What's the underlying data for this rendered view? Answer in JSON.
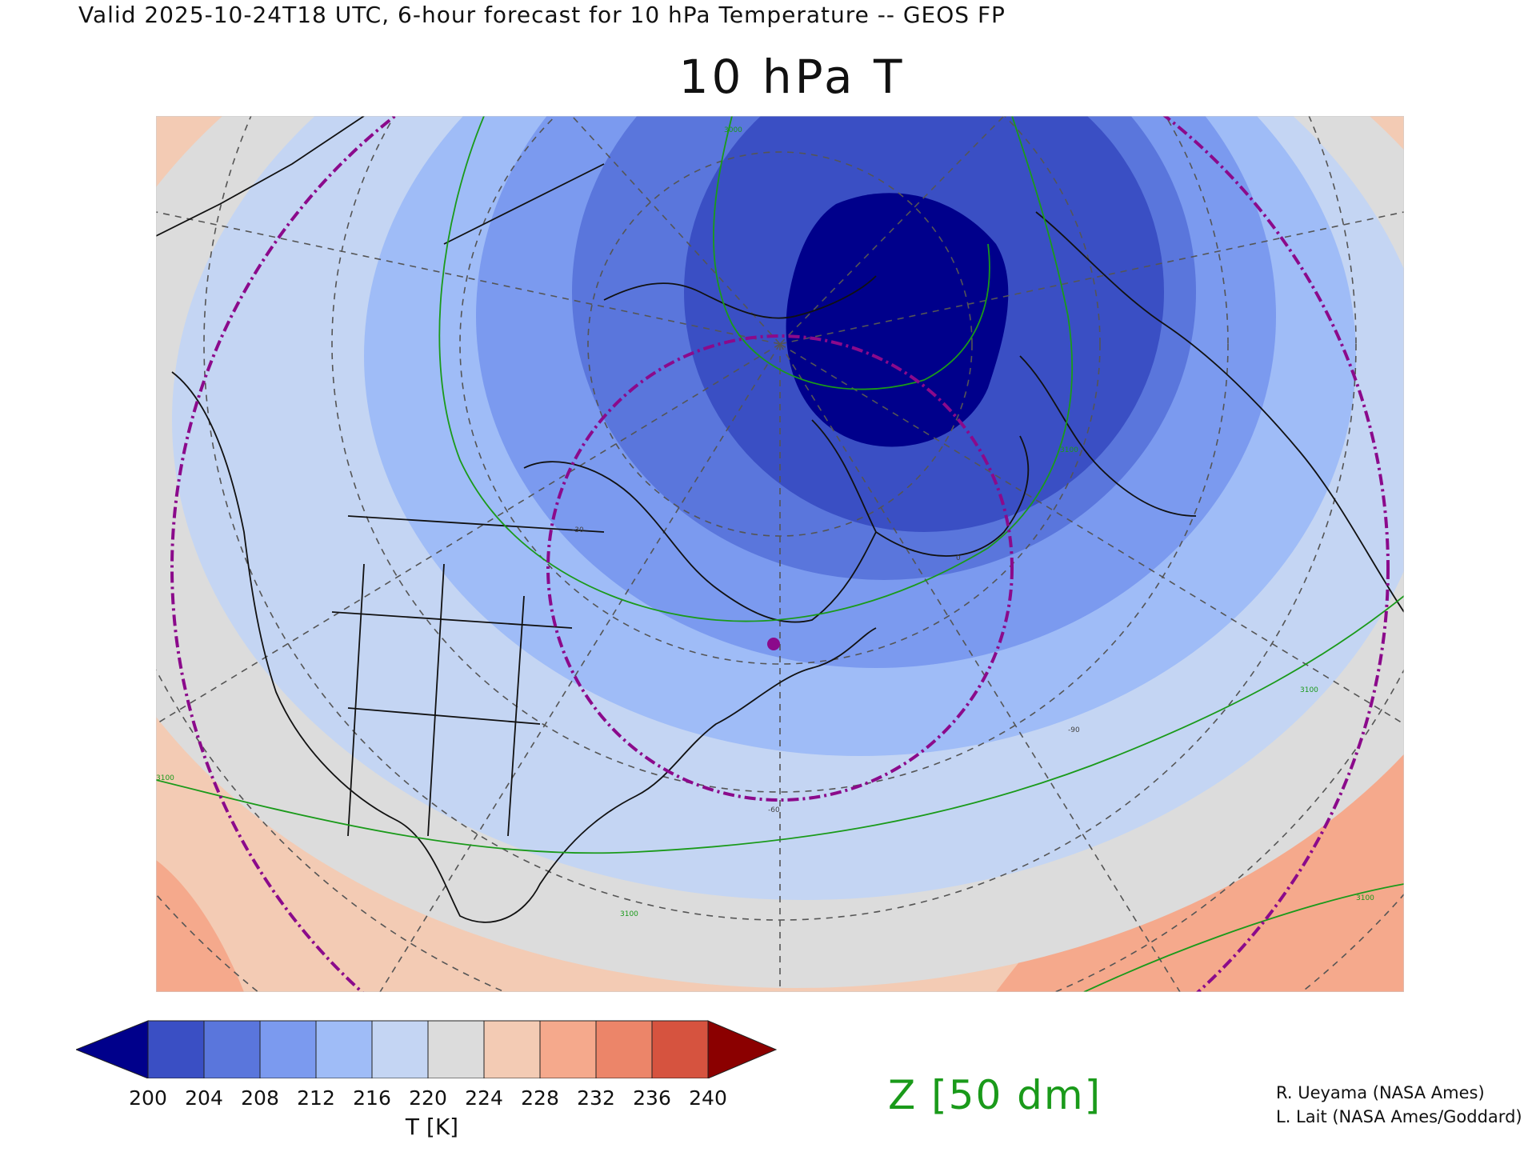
{
  "header": {
    "valid_line": "Valid 2025-10-24T18 UTC, 6-hour forecast for 10 hPa Temperature -- GEOS FP",
    "title": "10 hPa T"
  },
  "map": {
    "projection": "polar stereographic (North America / Arctic)",
    "contour_labels": [
      "3100",
      "3100",
      "3100",
      "3100",
      "3100",
      "3000",
      "-60",
      "-90",
      "-30",
      "0"
    ],
    "marker_color": "#8b0a8b",
    "contour_color": "#1a9a1a",
    "ring_color": "#8b0a8b"
  },
  "colorbar": {
    "ticks": [
      "200",
      "204",
      "208",
      "212",
      "216",
      "220",
      "224",
      "228",
      "232",
      "236",
      "240"
    ],
    "colors": [
      "#00008b",
      "#3a4fc4",
      "#5a76dc",
      "#7b9aef",
      "#9fbcf7",
      "#c4d5f3",
      "#dcdcdc",
      "#f3cbb4",
      "#f5a98c",
      "#ec8569",
      "#d6533f",
      "#8b0000"
    ],
    "label": "T [K]"
  },
  "overlay": {
    "z_label": "Z [50 dm]"
  },
  "credits": [
    "R. Ueyama (NASA Ames)",
    "L. Lait (NASA Ames/Goddard)"
  ]
}
